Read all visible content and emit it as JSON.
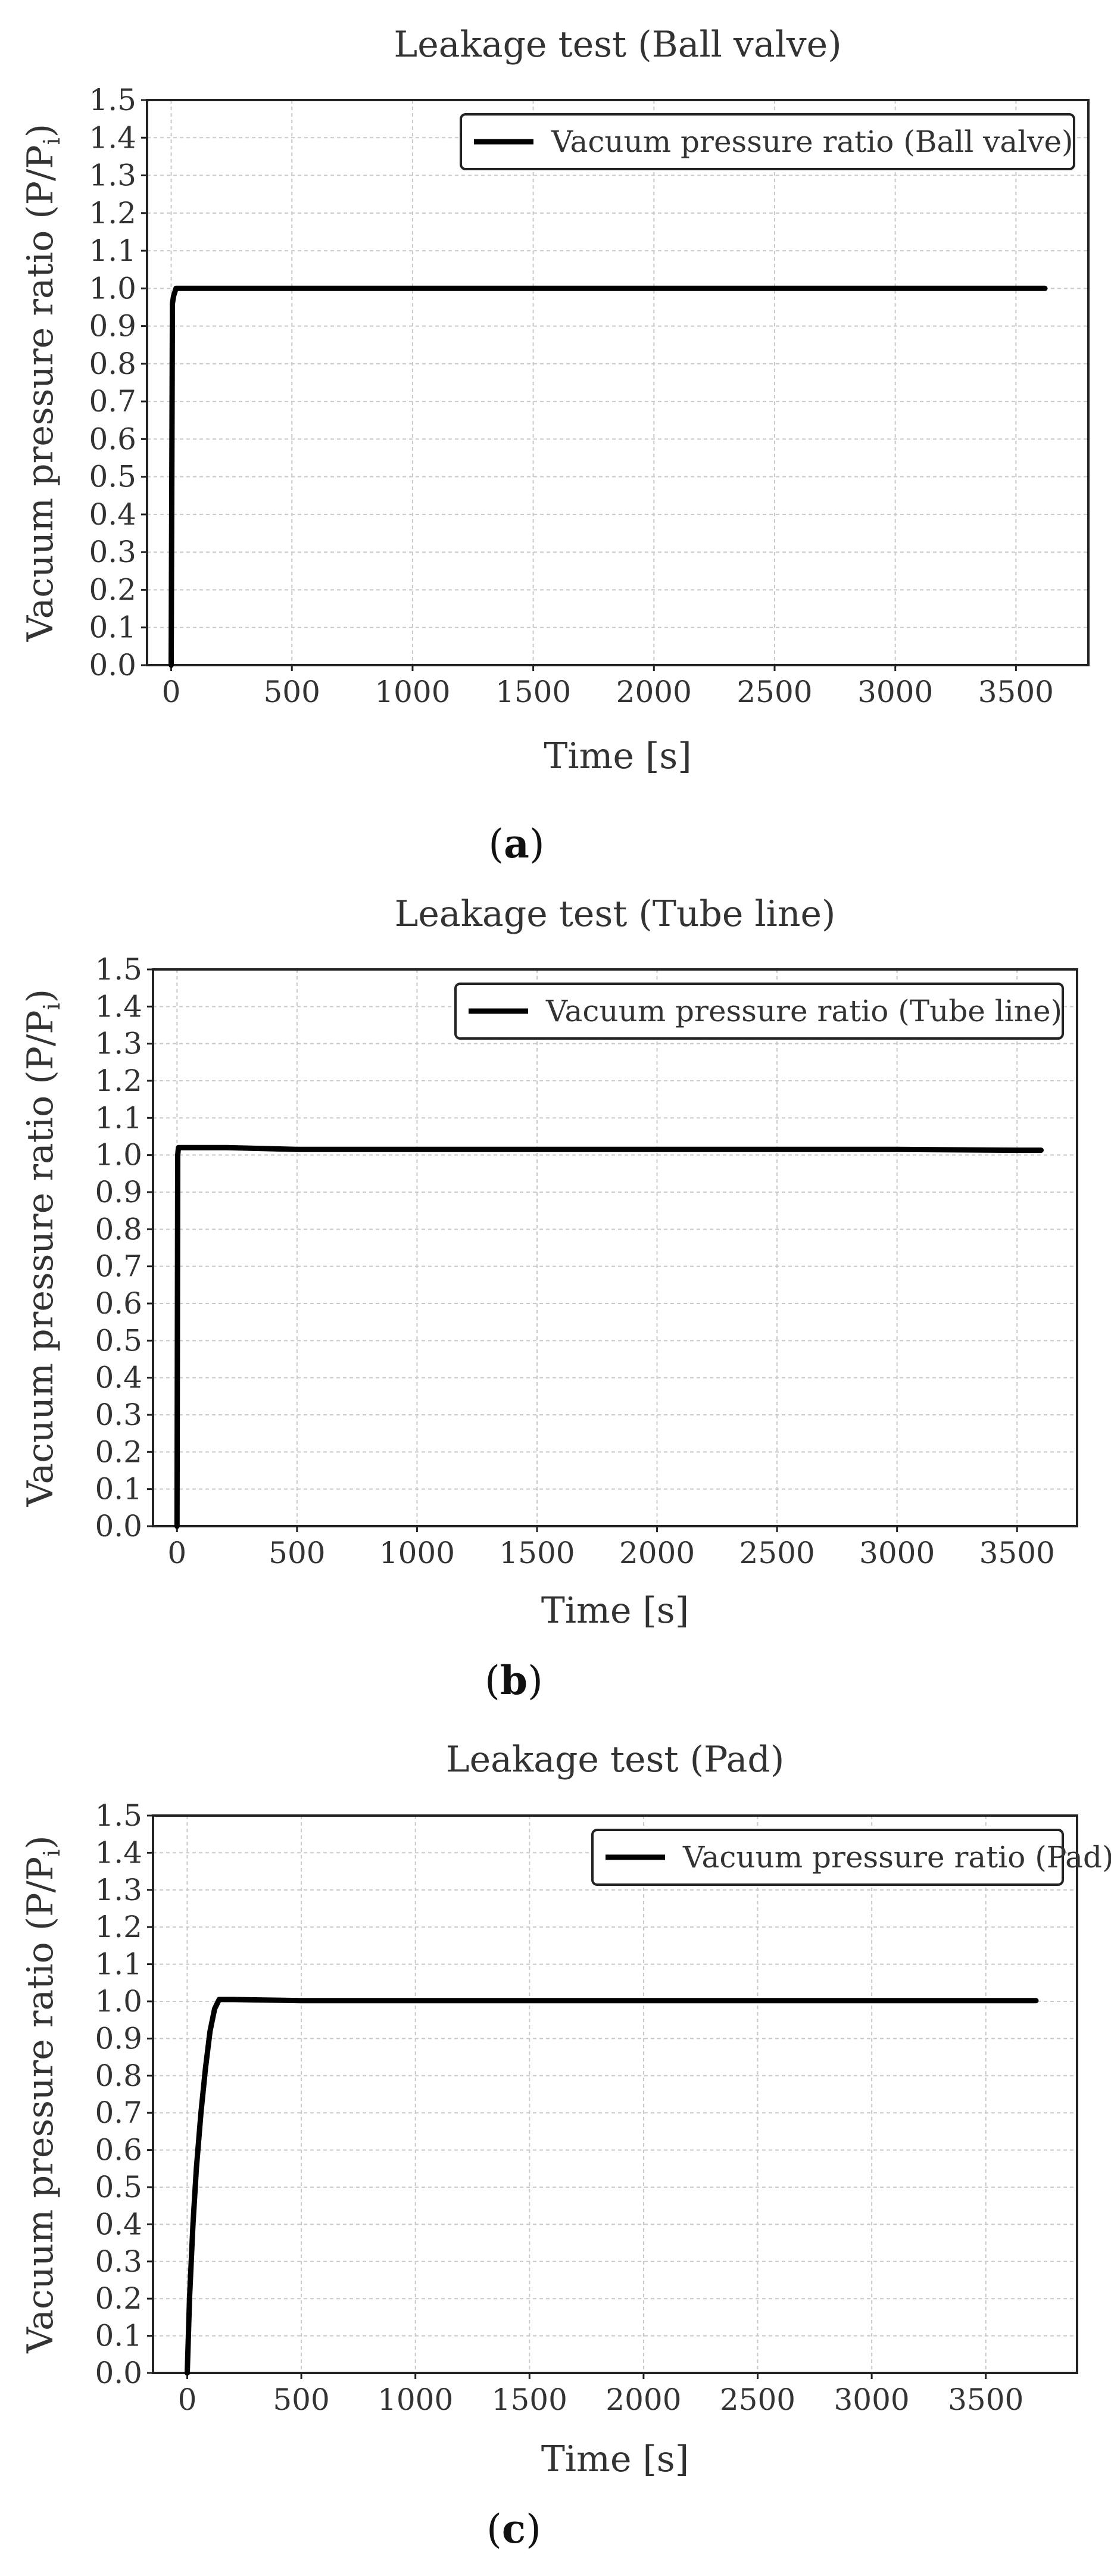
{
  "chart_data": [
    {
      "type": "line",
      "title": "Leakage test (Ball valve)",
      "xlabel": "Time [s]",
      "ylabel": "Vacuum pressure ratio (P/P",
      "ylabel_sub": "i",
      "ylabel_close": ")",
      "xlim": [
        -100,
        3800
      ],
      "ylim": [
        0.0,
        1.5
      ],
      "xticks": [
        0,
        500,
        1000,
        1500,
        2000,
        2500,
        3000,
        3500
      ],
      "yticks": [
        "0.0",
        "0.1",
        "0.2",
        "0.3",
        "0.4",
        "0.5",
        "0.6",
        "0.7",
        "0.8",
        "0.9",
        "1.0",
        "1.1",
        "1.2",
        "1.3",
        "1.4",
        "1.5"
      ],
      "grid": true,
      "legend_position": "top-right",
      "series": [
        {
          "name": "Vacuum pressure ratio (Ball valve)",
          "color": "#000000",
          "x": [
            0,
            5,
            10,
            15,
            20,
            40,
            100,
            500,
            1000,
            1500,
            2000,
            2500,
            3000,
            3500,
            3620
          ],
          "y": [
            0.0,
            0.96,
            0.98,
            0.99,
            1.0,
            1.0,
            1.0,
            1.0,
            1.0,
            1.0,
            1.0,
            1.0,
            1.0,
            1.0,
            1.0
          ]
        }
      ],
      "panel_label": "a"
    },
    {
      "type": "line",
      "title": "Leakage test (Tube line)",
      "xlabel": "Time [s]",
      "ylabel": "Vacuum pressure ratio (P/P",
      "ylabel_sub": "i",
      "ylabel_close": ")",
      "xlim": [
        -100,
        3750
      ],
      "ylim": [
        0.0,
        1.5
      ],
      "xticks": [
        0,
        500,
        1000,
        1500,
        2000,
        2500,
        3000,
        3500
      ],
      "yticks": [
        "0.0",
        "0.1",
        "0.2",
        "0.3",
        "0.4",
        "0.5",
        "0.6",
        "0.7",
        "0.8",
        "0.9",
        "1.0",
        "1.1",
        "1.2",
        "1.3",
        "1.4",
        "1.5"
      ],
      "grid": true,
      "legend_position": "top-right",
      "series": [
        {
          "name": "Vacuum pressure ratio (Tube line)",
          "color": "#000000",
          "x": [
            0,
            3,
            6,
            10,
            50,
            200,
            500,
            1000,
            1500,
            2000,
            2500,
            3000,
            3500,
            3600
          ],
          "y": [
            0.0,
            1.0,
            1.02,
            1.02,
            1.02,
            1.02,
            1.015,
            1.015,
            1.015,
            1.015,
            1.015,
            1.015,
            1.013,
            1.013
          ]
        }
      ],
      "panel_label": "b"
    },
    {
      "type": "line",
      "title": "Leakage test (Pad)",
      "xlabel": "Time [s]",
      "ylabel": "Vacuum pressure ratio (P/P",
      "ylabel_sub": "i",
      "ylabel_close": ")",
      "xlim": [
        -150,
        3900
      ],
      "ylim": [
        0.0,
        1.5
      ],
      "xticks": [
        0,
        500,
        1000,
        1500,
        2000,
        2500,
        3000,
        3500
      ],
      "yticks": [
        "0.0",
        "0.1",
        "0.2",
        "0.3",
        "0.4",
        "0.5",
        "0.6",
        "0.7",
        "0.8",
        "0.9",
        "1.0",
        "1.1",
        "1.2",
        "1.3",
        "1.4",
        "1.5"
      ],
      "grid": true,
      "legend_position": "top-right",
      "series": [
        {
          "name": "Vacuum pressure ratio (Pad)",
          "color": "#000000",
          "x": [
            0,
            10,
            25,
            40,
            60,
            80,
            100,
            120,
            140,
            200,
            500,
            1000,
            2000,
            3000,
            3720
          ],
          "y": [
            0.0,
            0.2,
            0.4,
            0.55,
            0.7,
            0.82,
            0.92,
            0.98,
            1.005,
            1.005,
            1.002,
            1.002,
            1.002,
            1.002,
            1.002
          ]
        }
      ],
      "panel_label": "c"
    }
  ]
}
